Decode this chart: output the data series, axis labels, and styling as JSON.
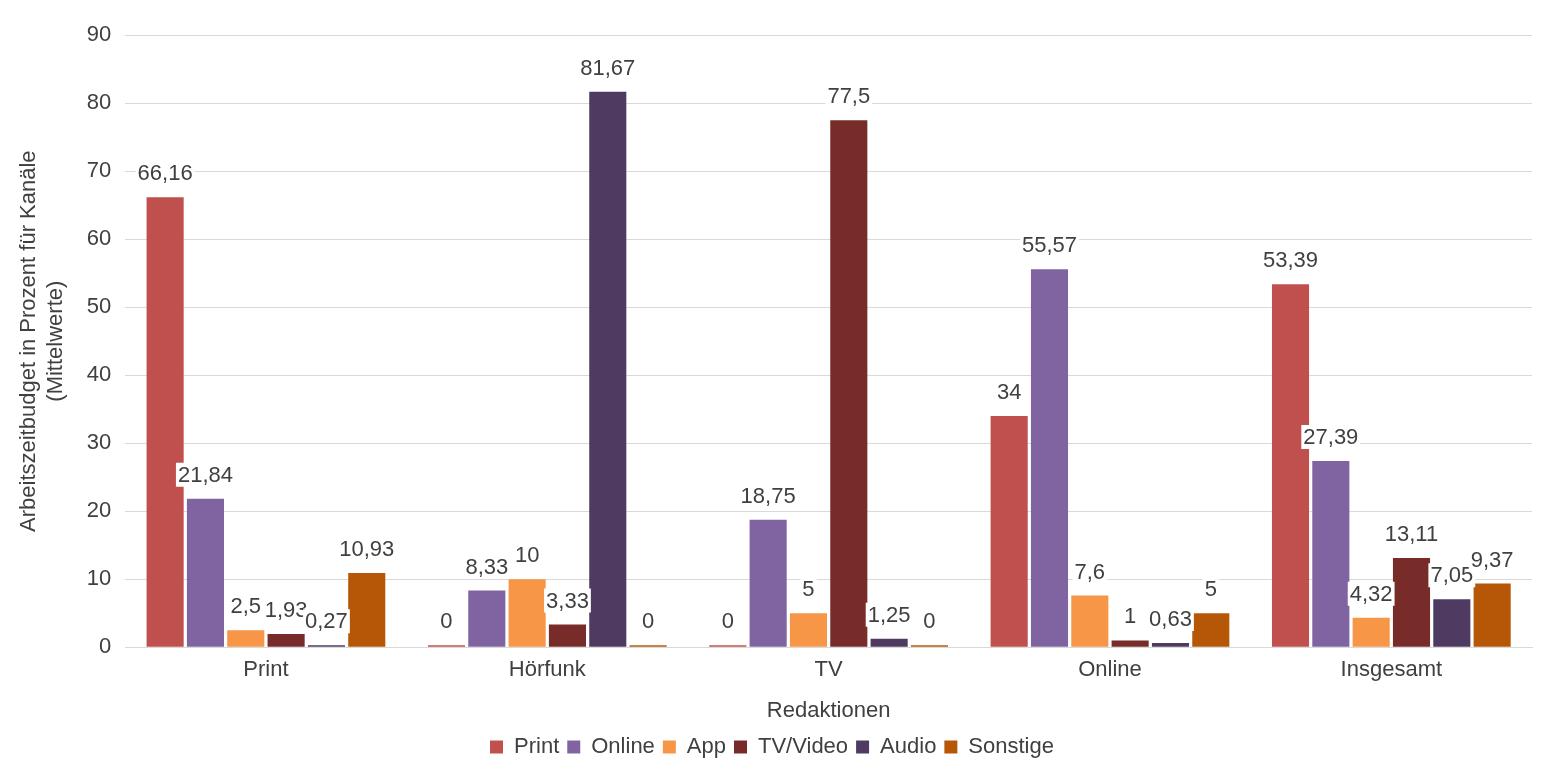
{
  "chart_data": {
    "type": "bar",
    "xlabel": "Redaktionen",
    "ylabel": "Arbeitszeitbudget in Prozent für Kanäle (Mittelwerte)",
    "categories": [
      "Print",
      "Hörfunk",
      "TV",
      "Online",
      "Insgesamt"
    ],
    "series": [
      {
        "name": "Print",
        "color": "#c0504d",
        "values": [
          66.16,
          0,
          0,
          34,
          53.39
        ],
        "value_labels": [
          "66,16",
          "0",
          "0",
          "34",
          "53,39"
        ]
      },
      {
        "name": "Online",
        "color": "#8064a2",
        "values": [
          21.84,
          8.33,
          18.75,
          55.57,
          27.39
        ],
        "value_labels": [
          "21,84",
          "8,33",
          "18,75",
          "55,57",
          "27,39"
        ]
      },
      {
        "name": "App",
        "color": "#f79646",
        "values": [
          2.5,
          10,
          5,
          7.6,
          4.32
        ],
        "value_labels": [
          "2,5",
          "10",
          "5",
          "7,6",
          "4,32"
        ]
      },
      {
        "name": "TV/Video",
        "color": "#772c2a",
        "values": [
          1.93,
          3.33,
          77.5,
          1,
          13.11
        ],
        "value_labels": [
          "1,93",
          "3,33",
          "77,5",
          "1",
          "13,11"
        ]
      },
      {
        "name": "Audio",
        "color": "#4f3b62",
        "values": [
          0.27,
          81.67,
          1.25,
          0.63,
          7.05
        ],
        "value_labels": [
          "0,27",
          "81,67",
          "1,25",
          "0,63",
          "7,05"
        ]
      },
      {
        "name": "Sonstige",
        "color": "#b65708",
        "values": [
          10.93,
          0,
          0,
          5,
          9.37
        ],
        "value_labels": [
          "10,93",
          "0",
          "0",
          "5",
          "9,37"
        ]
      }
    ],
    "ylim": [
      0,
      90
    ],
    "yticks": [
      0,
      10,
      20,
      30,
      40,
      50,
      60,
      70,
      80,
      90
    ],
    "grid": "y",
    "legend": "bottom"
  }
}
